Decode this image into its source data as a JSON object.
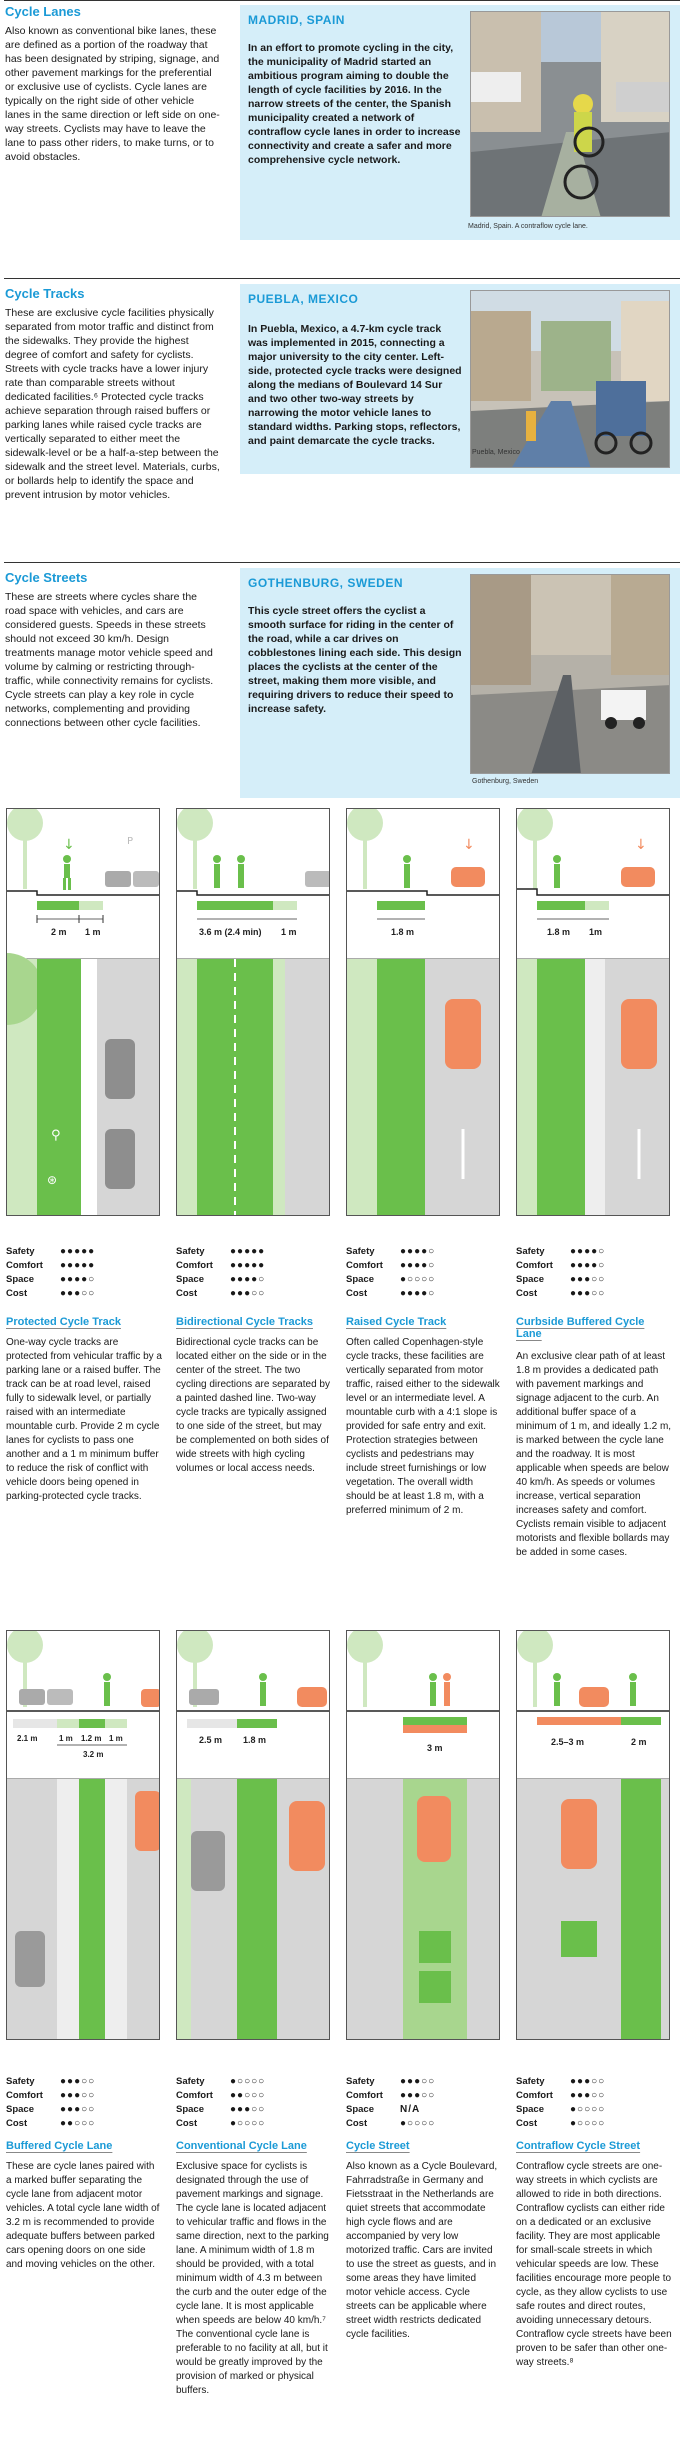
{
  "sections": [
    {
      "title": "Cycle Lanes",
      "body": "Also known as conventional bike lanes, these are defined as a portion of the roadway that has been designated by striping, signage, and other pavement markings for the preferential or exclusive use of cyclists. Cycle lanes are typically on the right side of other vehicle lanes in the same direction or left side on one-way streets. Cyclists may have to leave the lane to pass other riders, to make turns, or to avoid obstacles.",
      "case_title": "MADRID, SPAIN",
      "case_text": "In an effort to promote cycling in the city, the municipality of Madrid started an ambitious program aiming to double the length of cycle facilities by 2016. In the narrow streets of the center, the Spanish municipality created a network of contraflow cycle lanes in order to increase connectivity and create a safer and more comprehensive cycle network.",
      "photo_caption": "Madrid, Spain. A contraflow cycle lane."
    },
    {
      "title": "Cycle Tracks",
      "body": "These are exclusive cycle facilities physically separated from motor traffic and distinct from the sidewalks. They provide the highest degree of comfort and safety for cyclists. Streets with cycle tracks have a lower injury rate than comparable streets without dedicated facilities.⁶ Protected cycle tracks achieve separation through raised buffers or parking lanes while raised cycle tracks are vertically separated to either meet the sidewalk-level or be a half-a-step between the sidewalk and the street level. Materials, curbs, or bollards help to identify the space and prevent intrusion by motor vehicles.",
      "case_title": "PUEBLA, MEXICO",
      "case_text": "In Puebla, Mexico, a 4.7-km cycle track was implemented in 2015, connecting a major university to the city center. Left-side, protected cycle tracks were designed along the medians of Boulevard 14 Sur and two other two-way streets by narrowing the motor vehicle lanes to standard widths. Parking stops, reflectors, and paint demarcate the cycle tracks.",
      "photo_caption": "Puebla, Mexico"
    },
    {
      "title": "Cycle Streets",
      "body": "These are streets where cycles share the road space with vehicles, and cars are considered guests. Speeds in these streets should not exceed 30 km/h. Design treatments manage motor vehicle speed and volume by calming or restricting through-traffic, while connectivity remains for cyclists. Cycle streets can play a key role in cycle networks, complementing and providing connections between other cycle facilities.",
      "case_title": "GOTHENBURG, SWEDEN",
      "case_text": "This cycle street offers the cyclist a smooth surface for riding in the center of the road, while a car drives on cobblestones lining each side. This design places the cyclists at the center of the street, making them more visible, and requiring drivers to reduce their speed to increase safety.",
      "photo_caption": "Gothenburg, Sweden"
    }
  ],
  "rating_labels": [
    "Safety",
    "Comfort",
    "Space",
    "Cost"
  ],
  "facilities_row1": [
    {
      "name": "Protected Cycle Track",
      "dims": [
        "2 m",
        "1 m"
      ],
      "ratings": [
        "●●●●●",
        "●●●●●",
        "●●●●○",
        "●●●○○"
      ],
      "text": "One-way cycle tracks are protected from vehicular traffic by a parking lane or a raised buffer. The track can be at road level, raised fully to sidewalk level, or partially raised with an intermediate mountable curb. Provide 2 m cycle lanes for cyclists to pass one another and a 1 m minimum buffer to reduce the risk of conflict with vehicle doors being opened in parking-protected cycle tracks."
    },
    {
      "name": "Bidirectional Cycle Tracks",
      "dims": [
        "3.6 m (2.4 min)",
        "1 m"
      ],
      "ratings": [
        "●●●●●",
        "●●●●●",
        "●●●●○",
        "●●●○○"
      ],
      "text": "Bidirectional cycle tracks can be located either on the side or in the center of the street. The two cycling directions are separated by a painted dashed line. Two-way cycle tracks are typically assigned to one side of the street, but may be complemented on both sides of wide streets with high cycling volumes or local access needs."
    },
    {
      "name": "Raised Cycle Track",
      "dims": [
        "1.8 m"
      ],
      "ratings": [
        "●●●●○",
        "●●●●○",
        "●○○○○",
        "●●●●○"
      ],
      "text": "Often called Copenhagen-style cycle tracks, these facilities are vertically separated from motor traffic, raised either to the sidewalk level or an intermediate level. A mountable curb with a 4:1 slope is provided for safe entry and exit. Protection strategies between cyclists and pedestrians may include street furnishings or low vegetation. The overall width should be at least 1.8 m, with a preferred minimum of 2 m."
    },
    {
      "name": "Curbside Buffered Cycle Lane",
      "dims": [
        "1.8 m",
        "1m"
      ],
      "ratings": [
        "●●●●○",
        "●●●●○",
        "●●●○○",
        "●●●○○"
      ],
      "text": "An exclusive clear path of at least 1.8 m provides a dedicated path with pavement markings and signage adjacent to the curb. An additional buffer space of a minimum of 1 m, and ideally 1.2 m, is marked between the cycle lane and the roadway. It is most applicable when speeds are below 40 km/h. As speeds or volumes increase, vertical separation increases safety and comfort. Cyclists remain visible to adjacent motorists and flexible bollards may be added in some cases."
    }
  ],
  "facilities_row2": [
    {
      "name": "Buffered Cycle Lane",
      "dims": [
        "2.1 m",
        "1 m",
        "1.2 m",
        "1 m",
        "3.2 m"
      ],
      "ratings": [
        "●●●○○",
        "●●●○○",
        "●●●○○",
        "●●○○○"
      ],
      "text": "These are cycle lanes paired with a marked buffer separating the cycle lane from adjacent motor vehicles. A total cycle lane width of 3.2 m is recommended to provide adequate buffers between parked cars opening doors on one side and moving vehicles on the other."
    },
    {
      "name": "Conventional Cycle Lane",
      "dims": [
        "2.5 m",
        "1.8 m"
      ],
      "ratings": [
        "●○○○○",
        "●●○○○",
        "●●●○○",
        "●○○○○"
      ],
      "text": "Exclusive space for cyclists is designated through the use of pavement markings and signage. The cycle lane is located adjacent to vehicular traffic and flows in the same direction, next to the parking lane. A minimum width of 1.8 m should be provided, with a total minimum width of 4.3 m between the curb and the outer edge of the cycle lane. It is most applicable when speeds are below 40 km/h.⁷ The conventional cycle lane is preferable to no facility at all, but it would be greatly improved by the provision of marked or physical buffers."
    },
    {
      "name": "Cycle Street",
      "dims": [
        "3 m"
      ],
      "ratings": [
        "●●●○○",
        "●●●○○",
        "N/A",
        "●○○○○"
      ],
      "text": "Also known as a Cycle Boulevard, Fahrradstraße in Germany and Fietsstraat in the Netherlands are quiet streets that accommodate high cycle flows and are accompanied by very low motorized traffic. Cars are invited to use the street as guests, and in some areas they have limited motor vehicle access. Cycle streets can be applicable where street width restricts dedicated cycle facilities."
    },
    {
      "name": "Contraflow Cycle Street",
      "dims": [
        "2.5–3 m",
        "2 m"
      ],
      "ratings": [
        "●●●○○",
        "●●●○○",
        "●○○○○",
        "●○○○○"
      ],
      "text": "Contraflow cycle streets are one-way streets in which cyclists are allowed to ride in both directions. Contraflow cyclists can either ride on a dedicated or an exclusive facility. They are most applicable for small-scale streets in which vehicular speeds are low. These facilities encourage more people to cycle, as they allow cyclists to use safe routes and direct routes, avoiding unnecessary detours. Contraflow cycle streets have been proven to be safer than other one-way streets.⁸"
    }
  ],
  "colors": {
    "accent": "#1b9ad6",
    "green": "#6abf4b",
    "light_green": "#cfe8c0",
    "orange": "#f28b5f",
    "panel": "#d5eef9"
  },
  "icons": [
    "cyclist-icon",
    "pedestrian-icon",
    "tree-icon",
    "car-icon",
    "arrow-icon",
    "bike-symbol-icon"
  ]
}
